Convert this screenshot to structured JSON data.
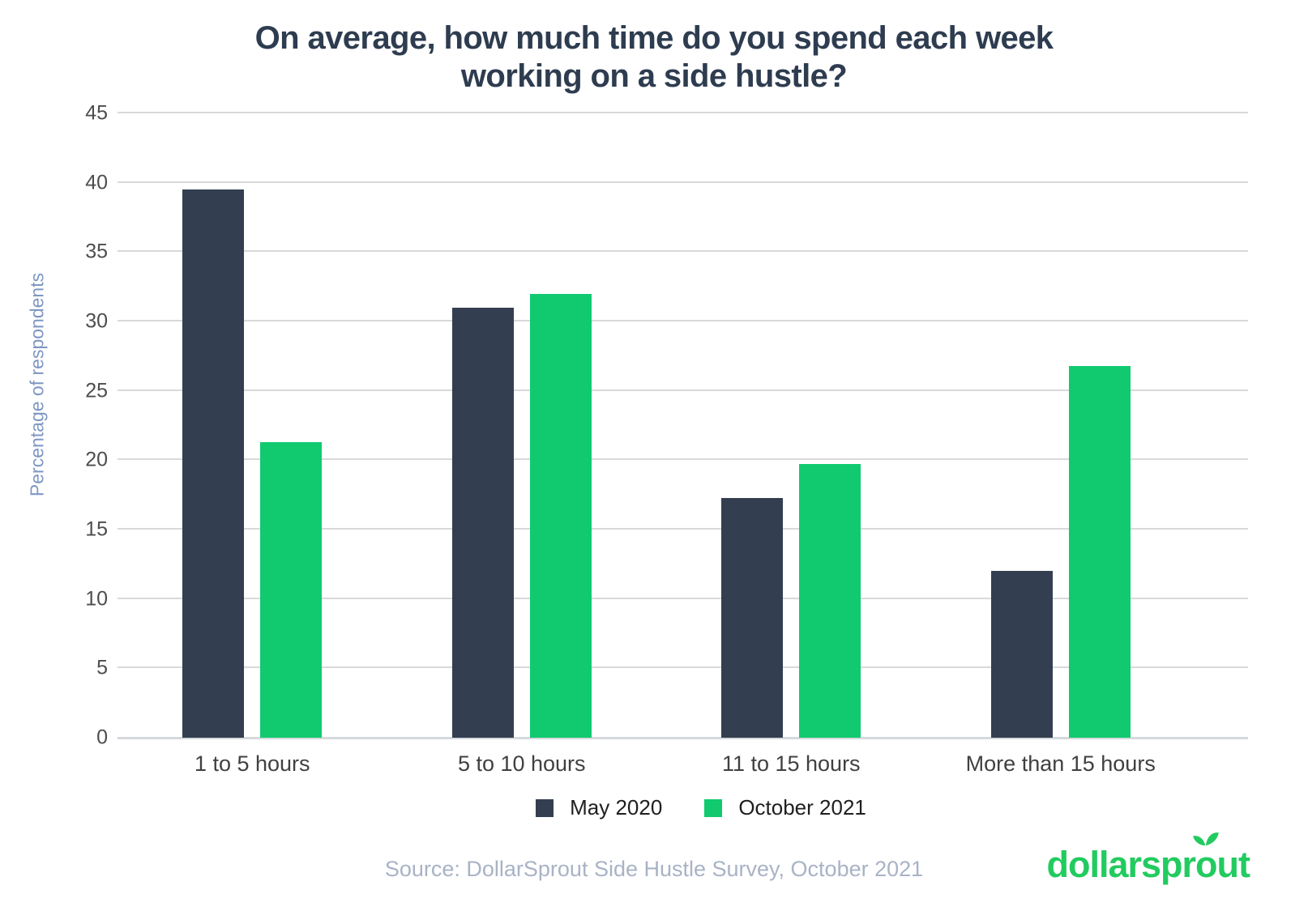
{
  "header": {
    "title_line1": "On average, how much time do you spend each week",
    "title_line2": "working on a side hustle?"
  },
  "chart_data": {
    "type": "bar",
    "title": "On average, how much time do you spend each week working on a side hustle?",
    "categories": [
      "1 to 5 hours",
      "5 to 10 hours",
      "11 to 15 hours",
      "More than 15 hours"
    ],
    "series": [
      {
        "name": "May 2020",
        "color": "#333F50",
        "values": [
          39.5,
          31,
          17.3,
          12
        ]
      },
      {
        "name": "October 2021",
        "color": "#11CA70",
        "values": [
          21.3,
          32,
          19.7,
          26.8
        ]
      }
    ],
    "xlabel": "",
    "ylabel": "Percentage of respondents",
    "ylim": [
      0,
      45
    ],
    "ytick_step": 5,
    "grid": true,
    "legend_position": "bottom"
  },
  "footer": {
    "source_text": "Source: DollarSprout Side Hustle Survey, October 2021"
  },
  "logo": {
    "pre": "dollarspr",
    "o": "o",
    "post": "ut",
    "color": "#22CB5F",
    "icon": "sprout-icon"
  },
  "colors": {
    "title": "#2E3C50",
    "axis_title": "#7E97C3",
    "tick_label": "#4d4d4d",
    "gridline": "#D9D9D9",
    "source": "#A9B3C6"
  }
}
